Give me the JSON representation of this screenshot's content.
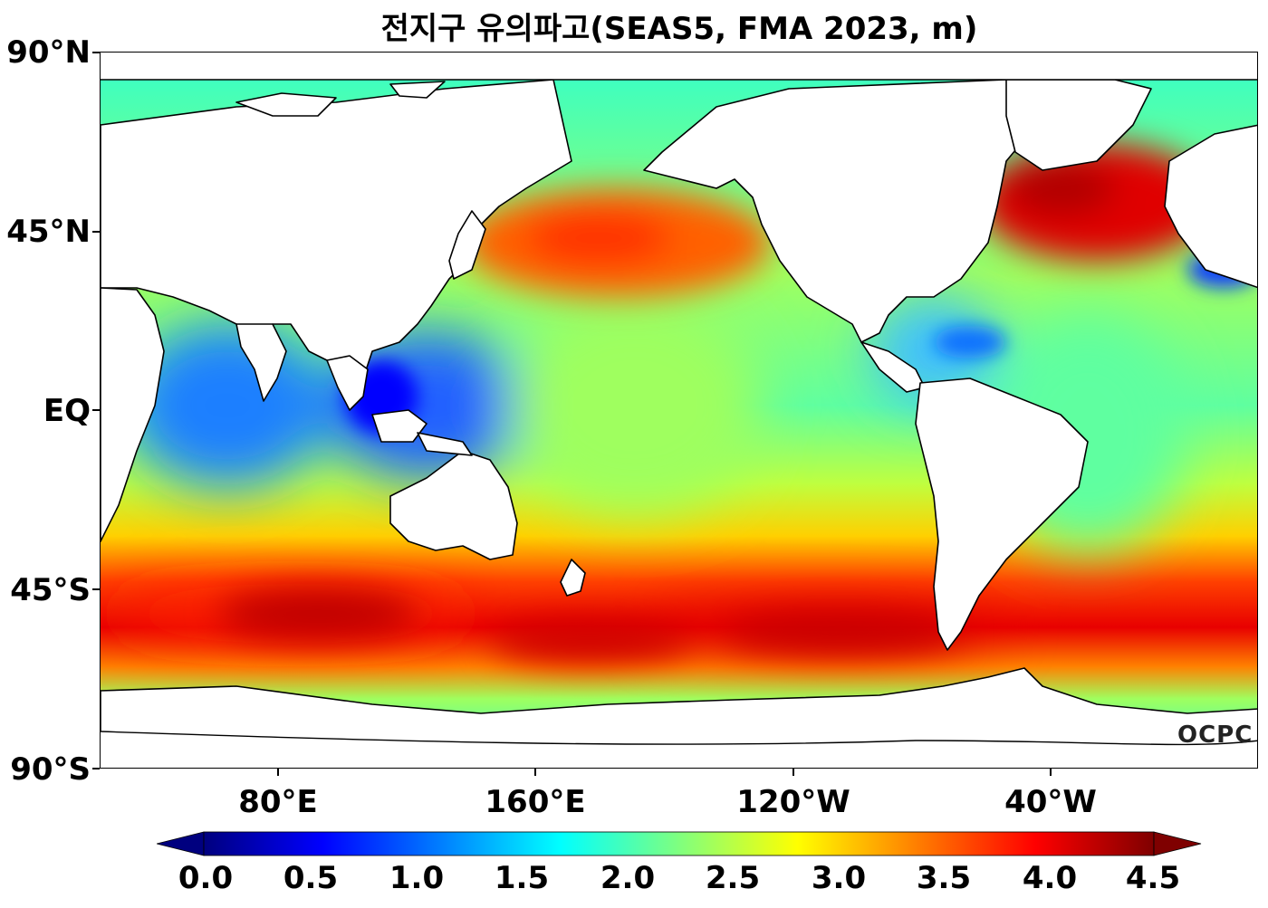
{
  "title": "전지구 유의파고(SEAS5, FMA 2023, m)",
  "y_axis": {
    "labels": [
      "90°N",
      "45°N",
      "EQ",
      "45°S",
      "90°S"
    ],
    "values": [
      90,
      45,
      0,
      -45,
      -90
    ]
  },
  "x_axis": {
    "labels": [
      "80°E",
      "160°E",
      "120°W",
      "40°W"
    ],
    "values": [
      80,
      160,
      240,
      320
    ]
  },
  "map": {
    "projection": "Plate Carrée (equirectangular)",
    "lon_range": [
      25,
      385
    ],
    "lat_range": [
      -90,
      90
    ],
    "variable": "significant wave height",
    "unit": "m",
    "land_color": "#ffffff",
    "coastline_color": "#000000"
  },
  "colorbar": {
    "ticks": [
      "0.0",
      "0.5",
      "1.0",
      "1.5",
      "2.0",
      "2.5",
      "3.0",
      "3.5",
      "4.0",
      "4.5"
    ],
    "range": [
      0,
      4.5
    ],
    "extend": "both",
    "colormap": "jet",
    "stops": [
      "#00007f",
      "#0000ff",
      "#007fff",
      "#00ffff",
      "#7fff7f",
      "#ffff00",
      "#ff7f00",
      "#ff0000",
      "#7f0000"
    ]
  },
  "logo": "OCPC"
}
